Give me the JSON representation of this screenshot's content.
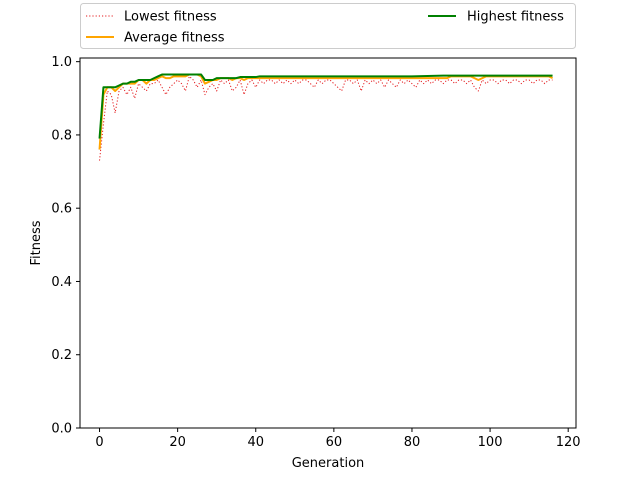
{
  "chart_data": {
    "type": "line",
    "title": "",
    "xlabel": "Generation",
    "ylabel": "Fitness",
    "xlim": [
      -5,
      122
    ],
    "ylim": [
      0.0,
      1.01
    ],
    "xticks": [
      0,
      20,
      40,
      60,
      80,
      100,
      120
    ],
    "yticks": [
      0.0,
      0.2,
      0.4,
      0.6,
      0.8,
      1.0
    ],
    "xtick_labels": [
      "0",
      "20",
      "40",
      "60",
      "80",
      "100",
      "120"
    ],
    "ytick_labels": [
      "0.0",
      "0.2",
      "0.4",
      "0.6",
      "0.8",
      "1.0"
    ],
    "grid": false,
    "legend_position": "top",
    "series": [
      {
        "name": "Lowest fitness",
        "color": "#e41a1c",
        "style": "dotted",
        "points": [
          [
            0,
            0.73
          ],
          [
            1,
            0.83
          ],
          [
            2,
            0.92
          ],
          [
            3,
            0.91
          ],
          [
            4,
            0.86
          ],
          [
            5,
            0.92
          ],
          [
            6,
            0.93
          ],
          [
            7,
            0.91
          ],
          [
            8,
            0.93
          ],
          [
            9,
            0.9
          ],
          [
            10,
            0.94
          ],
          [
            11,
            0.93
          ],
          [
            12,
            0.92
          ],
          [
            13,
            0.94
          ],
          [
            14,
            0.94
          ],
          [
            15,
            0.95
          ],
          [
            16,
            0.93
          ],
          [
            17,
            0.91
          ],
          [
            18,
            0.93
          ],
          [
            19,
            0.94
          ],
          [
            20,
            0.95
          ],
          [
            21,
            0.94
          ],
          [
            22,
            0.92
          ],
          [
            23,
            0.96
          ],
          [
            24,
            0.95
          ],
          [
            25,
            0.93
          ],
          [
            26,
            0.95
          ],
          [
            27,
            0.91
          ],
          [
            28,
            0.93
          ],
          [
            29,
            0.94
          ],
          [
            30,
            0.92
          ],
          [
            31,
            0.95
          ],
          [
            32,
            0.94
          ],
          [
            33,
            0.95
          ],
          [
            34,
            0.92
          ],
          [
            35,
            0.93
          ],
          [
            36,
            0.95
          ],
          [
            37,
            0.91
          ],
          [
            38,
            0.94
          ],
          [
            39,
            0.95
          ],
          [
            40,
            0.93
          ],
          [
            41,
            0.95
          ],
          [
            42,
            0.94
          ],
          [
            43,
            0.95
          ],
          [
            44,
            0.95
          ],
          [
            45,
            0.94
          ],
          [
            46,
            0.95
          ],
          [
            47,
            0.94
          ],
          [
            48,
            0.95
          ],
          [
            49,
            0.94
          ],
          [
            50,
            0.95
          ],
          [
            51,
            0.94
          ],
          [
            52,
            0.95
          ],
          [
            53,
            0.95
          ],
          [
            54,
            0.94
          ],
          [
            55,
            0.93
          ],
          [
            56,
            0.95
          ],
          [
            57,
            0.94
          ],
          [
            58,
            0.95
          ],
          [
            59,
            0.95
          ],
          [
            60,
            0.94
          ],
          [
            61,
            0.93
          ],
          [
            62,
            0.92
          ],
          [
            63,
            0.95
          ],
          [
            64,
            0.95
          ],
          [
            65,
            0.94
          ],
          [
            66,
            0.95
          ],
          [
            67,
            0.92
          ],
          [
            68,
            0.95
          ],
          [
            69,
            0.94
          ],
          [
            70,
            0.95
          ],
          [
            71,
            0.94
          ],
          [
            72,
            0.95
          ],
          [
            73,
            0.93
          ],
          [
            74,
            0.95
          ],
          [
            75,
            0.94
          ],
          [
            76,
            0.93
          ],
          [
            77,
            0.95
          ],
          [
            78,
            0.94
          ],
          [
            79,
            0.95
          ],
          [
            80,
            0.94
          ],
          [
            81,
            0.93
          ],
          [
            82,
            0.95
          ],
          [
            83,
            0.94
          ],
          [
            84,
            0.95
          ],
          [
            85,
            0.94
          ],
          [
            86,
            0.95
          ],
          [
            87,
            0.95
          ],
          [
            88,
            0.94
          ],
          [
            89,
            0.95
          ],
          [
            90,
            0.95
          ],
          [
            91,
            0.94
          ],
          [
            92,
            0.95
          ],
          [
            93,
            0.95
          ],
          [
            94,
            0.94
          ],
          [
            95,
            0.95
          ],
          [
            96,
            0.93
          ],
          [
            97,
            0.92
          ],
          [
            98,
            0.95
          ],
          [
            99,
            0.94
          ],
          [
            100,
            0.95
          ],
          [
            101,
            0.95
          ],
          [
            102,
            0.94
          ],
          [
            103,
            0.95
          ],
          [
            104,
            0.95
          ],
          [
            105,
            0.94
          ],
          [
            106,
            0.95
          ],
          [
            107,
            0.95
          ],
          [
            108,
            0.94
          ],
          [
            109,
            0.95
          ],
          [
            110,
            0.95
          ],
          [
            111,
            0.94
          ],
          [
            112,
            0.95
          ],
          [
            113,
            0.95
          ],
          [
            114,
            0.94
          ],
          [
            115,
            0.95
          ],
          [
            116,
            0.95
          ]
        ]
      },
      {
        "name": "Average fitness",
        "color": "#ffa500",
        "style": "solid",
        "points": [
          [
            0,
            0.76
          ],
          [
            1,
            0.91
          ],
          [
            2,
            0.93
          ],
          [
            3,
            0.93
          ],
          [
            4,
            0.92
          ],
          [
            5,
            0.93
          ],
          [
            6,
            0.94
          ],
          [
            7,
            0.94
          ],
          [
            8,
            0.94
          ],
          [
            9,
            0.94
          ],
          [
            10,
            0.95
          ],
          [
            11,
            0.95
          ],
          [
            12,
            0.94
          ],
          [
            13,
            0.95
          ],
          [
            14,
            0.95
          ],
          [
            15,
            0.955
          ],
          [
            16,
            0.96
          ],
          [
            17,
            0.955
          ],
          [
            18,
            0.955
          ],
          [
            19,
            0.96
          ],
          [
            20,
            0.96
          ],
          [
            21,
            0.96
          ],
          [
            22,
            0.96
          ],
          [
            23,
            0.965
          ],
          [
            24,
            0.965
          ],
          [
            25,
            0.965
          ],
          [
            26,
            0.96
          ],
          [
            27,
            0.94
          ],
          [
            28,
            0.945
          ],
          [
            29,
            0.95
          ],
          [
            30,
            0.95
          ],
          [
            31,
            0.955
          ],
          [
            32,
            0.955
          ],
          [
            33,
            0.955
          ],
          [
            34,
            0.95
          ],
          [
            35,
            0.955
          ],
          [
            36,
            0.955
          ],
          [
            37,
            0.95
          ],
          [
            38,
            0.955
          ],
          [
            39,
            0.955
          ],
          [
            40,
            0.955
          ],
          [
            41,
            0.955
          ],
          [
            42,
            0.955
          ],
          [
            43,
            0.955
          ],
          [
            44,
            0.955
          ],
          [
            45,
            0.955
          ],
          [
            46,
            0.955
          ],
          [
            47,
            0.955
          ],
          [
            48,
            0.955
          ],
          [
            49,
            0.955
          ],
          [
            50,
            0.955
          ],
          [
            51,
            0.955
          ],
          [
            52,
            0.955
          ],
          [
            53,
            0.955
          ],
          [
            54,
            0.955
          ],
          [
            55,
            0.955
          ],
          [
            56,
            0.955
          ],
          [
            57,
            0.955
          ],
          [
            58,
            0.955
          ],
          [
            59,
            0.955
          ],
          [
            60,
            0.955
          ],
          [
            61,
            0.955
          ],
          [
            62,
            0.955
          ],
          [
            63,
            0.955
          ],
          [
            64,
            0.955
          ],
          [
            65,
            0.955
          ],
          [
            66,
            0.955
          ],
          [
            67,
            0.955
          ],
          [
            68,
            0.955
          ],
          [
            69,
            0.955
          ],
          [
            70,
            0.955
          ],
          [
            71,
            0.955
          ],
          [
            72,
            0.955
          ],
          [
            73,
            0.955
          ],
          [
            74,
            0.955
          ],
          [
            75,
            0.955
          ],
          [
            76,
            0.955
          ],
          [
            77,
            0.955
          ],
          [
            78,
            0.955
          ],
          [
            79,
            0.955
          ],
          [
            80,
            0.955
          ],
          [
            81,
            0.955
          ],
          [
            82,
            0.955
          ],
          [
            83,
            0.955
          ],
          [
            84,
            0.955
          ],
          [
            85,
            0.955
          ],
          [
            86,
            0.955
          ],
          [
            87,
            0.955
          ],
          [
            88,
            0.955
          ],
          [
            89,
            0.955
          ],
          [
            90,
            0.96
          ],
          [
            91,
            0.96
          ],
          [
            92,
            0.96
          ],
          [
            93,
            0.96
          ],
          [
            94,
            0.96
          ],
          [
            95,
            0.96
          ],
          [
            96,
            0.955
          ],
          [
            97,
            0.95
          ],
          [
            98,
            0.955
          ],
          [
            99,
            0.96
          ],
          [
            100,
            0.96
          ],
          [
            101,
            0.96
          ],
          [
            102,
            0.96
          ],
          [
            103,
            0.96
          ],
          [
            104,
            0.96
          ],
          [
            105,
            0.96
          ],
          [
            106,
            0.96
          ],
          [
            107,
            0.96
          ],
          [
            108,
            0.96
          ],
          [
            109,
            0.96
          ],
          [
            110,
            0.96
          ],
          [
            111,
            0.96
          ],
          [
            112,
            0.96
          ],
          [
            113,
            0.96
          ],
          [
            114,
            0.96
          ],
          [
            115,
            0.96
          ],
          [
            116,
            0.955
          ]
        ]
      },
      {
        "name": "Highest fitness",
        "color": "#008000",
        "style": "solid",
        "points": [
          [
            0,
            0.79
          ],
          [
            1,
            0.93
          ],
          [
            2,
            0.93
          ],
          [
            3,
            0.93
          ],
          [
            4,
            0.93
          ],
          [
            5,
            0.935
          ],
          [
            6,
            0.94
          ],
          [
            7,
            0.94
          ],
          [
            8,
            0.945
          ],
          [
            9,
            0.945
          ],
          [
            10,
            0.95
          ],
          [
            11,
            0.95
          ],
          [
            12,
            0.95
          ],
          [
            13,
            0.95
          ],
          [
            14,
            0.955
          ],
          [
            15,
            0.96
          ],
          [
            16,
            0.965
          ],
          [
            17,
            0.965
          ],
          [
            18,
            0.965
          ],
          [
            19,
            0.965
          ],
          [
            20,
            0.965
          ],
          [
            21,
            0.965
          ],
          [
            22,
            0.965
          ],
          [
            23,
            0.965
          ],
          [
            24,
            0.965
          ],
          [
            25,
            0.965
          ],
          [
            26,
            0.965
          ],
          [
            27,
            0.95
          ],
          [
            28,
            0.95
          ],
          [
            29,
            0.95
          ],
          [
            30,
            0.955
          ],
          [
            31,
            0.955
          ],
          [
            32,
            0.955
          ],
          [
            33,
            0.955
          ],
          [
            34,
            0.955
          ],
          [
            35,
            0.955
          ],
          [
            36,
            0.958
          ],
          [
            37,
            0.958
          ],
          [
            38,
            0.958
          ],
          [
            39,
            0.958
          ],
          [
            40,
            0.958
          ],
          [
            41,
            0.96
          ],
          [
            42,
            0.96
          ],
          [
            43,
            0.96
          ],
          [
            44,
            0.96
          ],
          [
            45,
            0.96
          ],
          [
            50,
            0.96
          ],
          [
            60,
            0.96
          ],
          [
            70,
            0.96
          ],
          [
            80,
            0.96
          ],
          [
            88,
            0.962
          ],
          [
            90,
            0.962
          ],
          [
            100,
            0.962
          ],
          [
            110,
            0.962
          ],
          [
            116,
            0.962
          ]
        ]
      }
    ]
  }
}
